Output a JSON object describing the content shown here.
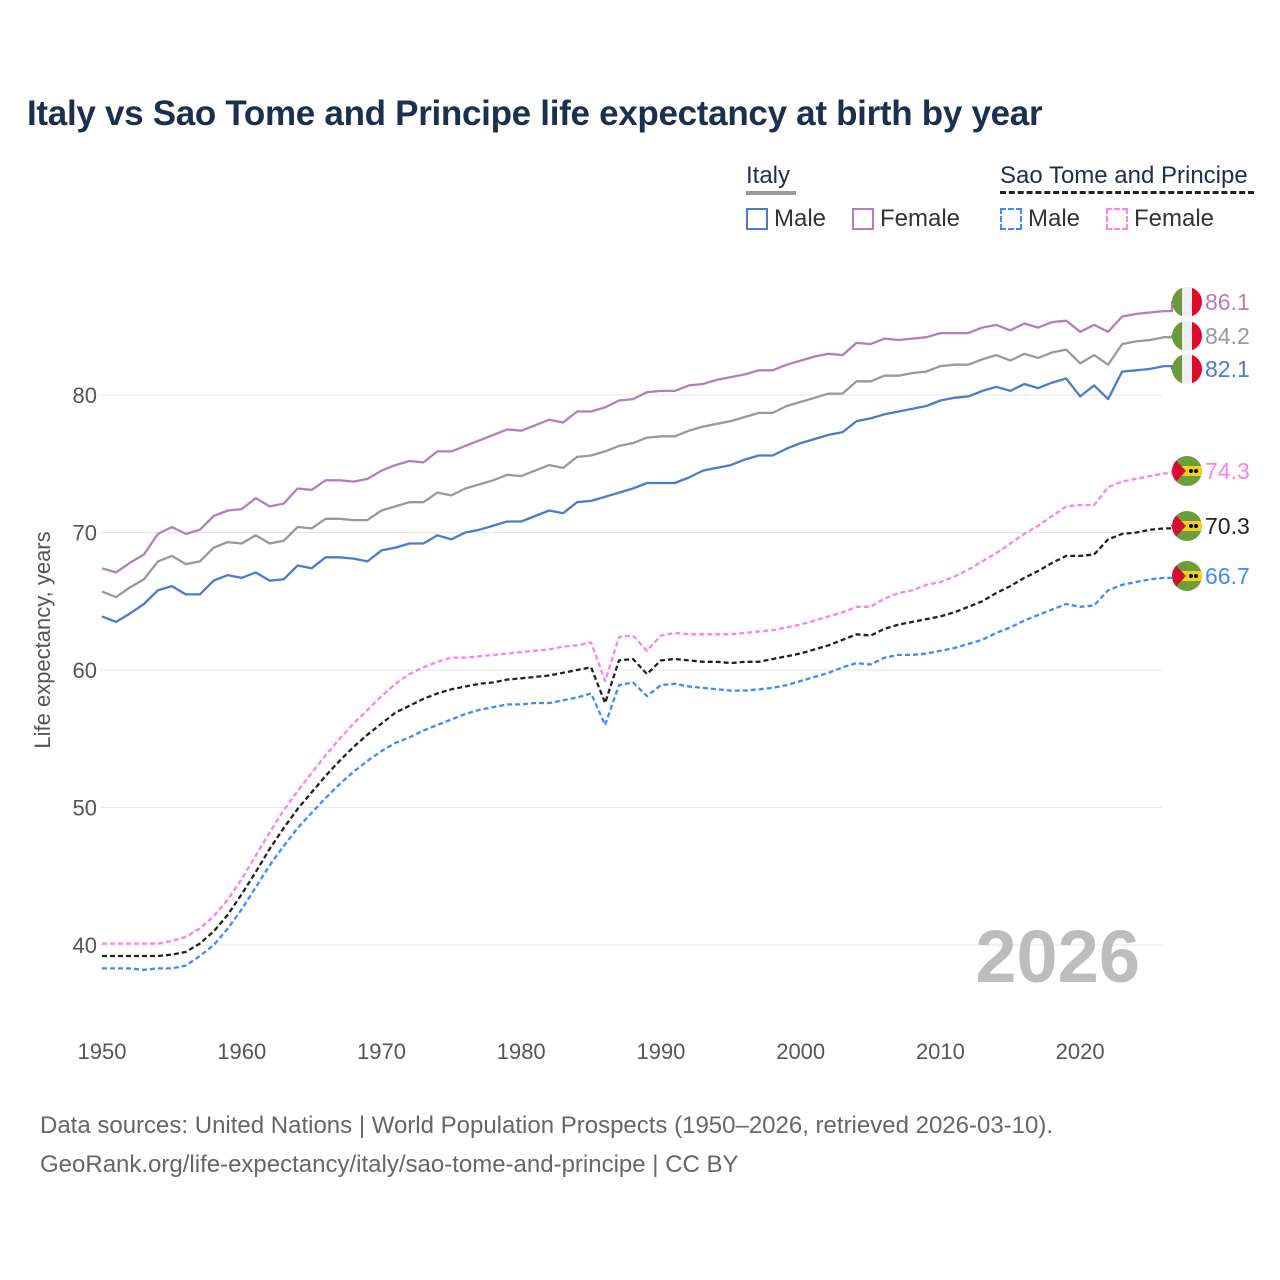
{
  "title": "Italy vs Sao Tome and Principe life expectancy at birth by year",
  "legend": {
    "italy": {
      "label": "Italy",
      "male": "Male",
      "female": "Female"
    },
    "stp": {
      "label": "Sao Tome and Principe",
      "male": "Male",
      "female": "Female"
    }
  },
  "watermark_year": "2026",
  "source": {
    "line1": "Data sources: United Nations | World Population Prospects (1950–2026, retrieved 2026-03-10).",
    "line2": "GeoRank.org/life-expectancy/italy/sao-tome-and-principe | CC BY"
  },
  "chart_data": {
    "type": "line",
    "title": "Italy vs Sao Tome and Principe life expectancy at birth by year",
    "xlabel": "",
    "ylabel": "Life expectancy, years",
    "x_start": 1950,
    "x_end": 2026,
    "xlim": [
      1950,
      2026
    ],
    "ylim": [
      35,
      88
    ],
    "x_ticks": [
      "1950",
      "1960",
      "1970",
      "1980",
      "1990",
      "2000",
      "2010",
      "2020"
    ],
    "y_ticks": [
      "40",
      "50",
      "60",
      "70",
      "80"
    ],
    "grid": true,
    "legend_position": "top-right",
    "series": [
      {
        "name": "Italy Female",
        "color": "#b87cbb",
        "dashed": false,
        "flag": "italy",
        "end_label": "86.1",
        "values": [
          67.4,
          67.1,
          67.8,
          68.4,
          69.9,
          70.4,
          69.9,
          70.2,
          71.2,
          71.6,
          71.7,
          72.5,
          71.9,
          72.1,
          73.2,
          73.1,
          73.8,
          73.8,
          73.7,
          73.9,
          74.5,
          74.9,
          75.2,
          75.1,
          75.9,
          75.9,
          76.3,
          76.7,
          77.1,
          77.5,
          77.4,
          77.8,
          78.2,
          78.0,
          78.8,
          78.8,
          79.1,
          79.6,
          79.7,
          80.2,
          80.3,
          80.3,
          80.7,
          80.8,
          81.1,
          81.3,
          81.5,
          81.8,
          81.8,
          82.2,
          82.5,
          82.8,
          83.0,
          82.9,
          83.8,
          83.7,
          84.1,
          84.0,
          84.1,
          84.2,
          84.5,
          84.5,
          84.5,
          84.9,
          85.1,
          84.7,
          85.2,
          84.9,
          85.3,
          85.4,
          84.6,
          85.1,
          84.6,
          85.7,
          85.9,
          86.0,
          86.1
        ]
      },
      {
        "name": "Italy Total",
        "color": "#999999",
        "dashed": false,
        "flag": "italy",
        "end_label": "84.2",
        "values": [
          65.7,
          65.3,
          66.0,
          66.6,
          67.9,
          68.3,
          67.7,
          67.9,
          68.9,
          69.3,
          69.2,
          69.8,
          69.2,
          69.4,
          70.4,
          70.3,
          71.0,
          71.0,
          70.9,
          70.9,
          71.6,
          71.9,
          72.2,
          72.2,
          72.9,
          72.7,
          73.2,
          73.5,
          73.8,
          74.2,
          74.1,
          74.5,
          74.9,
          74.7,
          75.5,
          75.6,
          75.9,
          76.3,
          76.5,
          76.9,
          77.0,
          77.0,
          77.4,
          77.7,
          77.9,
          78.1,
          78.4,
          78.7,
          78.7,
          79.2,
          79.5,
          79.8,
          80.1,
          80.1,
          81.0,
          81.0,
          81.4,
          81.4,
          81.6,
          81.7,
          82.1,
          82.2,
          82.2,
          82.6,
          82.9,
          82.5,
          83.0,
          82.7,
          83.1,
          83.3,
          82.3,
          82.9,
          82.2,
          83.7,
          83.9,
          84.0,
          84.2
        ]
      },
      {
        "name": "Italy Male",
        "color": "#4a7cc9",
        "dashed": false,
        "flag": "italy",
        "end_label": "82.1",
        "values": [
          63.9,
          63.5,
          64.1,
          64.8,
          65.8,
          66.1,
          65.5,
          65.5,
          66.5,
          66.9,
          66.7,
          67.1,
          66.5,
          66.6,
          67.6,
          67.4,
          68.2,
          68.2,
          68.1,
          67.9,
          68.7,
          68.9,
          69.2,
          69.2,
          69.8,
          69.5,
          70.0,
          70.2,
          70.5,
          70.8,
          70.8,
          71.2,
          71.6,
          71.4,
          72.2,
          72.3,
          72.6,
          72.9,
          73.2,
          73.6,
          73.6,
          73.6,
          74.0,
          74.5,
          74.7,
          74.9,
          75.3,
          75.6,
          75.6,
          76.1,
          76.5,
          76.8,
          77.1,
          77.3,
          78.1,
          78.3,
          78.6,
          78.8,
          79.0,
          79.2,
          79.6,
          79.8,
          79.9,
          80.3,
          80.6,
          80.3,
          80.8,
          80.5,
          80.9,
          81.2,
          79.9,
          80.7,
          79.7,
          81.7,
          81.8,
          81.9,
          82.1
        ]
      },
      {
        "name": "Sao Tome and Principe Female",
        "color": "#ff80f0",
        "dashed": true,
        "flag": "stp",
        "end_label": "74.3",
        "values": [
          40.1,
          40.1,
          40.1,
          40.1,
          40.1,
          40.3,
          40.6,
          41.2,
          42.1,
          43.3,
          44.8,
          46.5,
          48.2,
          49.8,
          51.2,
          52.5,
          53.8,
          55.0,
          56.1,
          57.1,
          58.1,
          59.0,
          59.7,
          60.2,
          60.6,
          60.9,
          60.9,
          61.0,
          61.1,
          61.2,
          61.3,
          61.4,
          61.5,
          61.7,
          61.8,
          62.0,
          59.2,
          62.4,
          62.5,
          61.4,
          62.5,
          62.7,
          62.6,
          62.6,
          62.6,
          62.6,
          62.7,
          62.8,
          62.9,
          63.1,
          63.3,
          63.6,
          63.9,
          64.2,
          64.6,
          64.6,
          65.2,
          65.6,
          65.8,
          66.2,
          66.4,
          66.8,
          67.3,
          67.9,
          68.5,
          69.2,
          69.9,
          70.5,
          71.2,
          71.9,
          72.0,
          72.0,
          73.3,
          73.7,
          73.9,
          74.1,
          74.3
        ]
      },
      {
        "name": "Sao Tome and Principe Total",
        "color": "#222222",
        "dashed": true,
        "flag": "stp",
        "end_label": "70.3",
        "values": [
          39.2,
          39.2,
          39.2,
          39.2,
          39.2,
          39.3,
          39.5,
          40.1,
          41.0,
          42.2,
          43.7,
          45.3,
          47.0,
          48.5,
          49.9,
          51.1,
          52.3,
          53.4,
          54.4,
          55.3,
          56.1,
          56.9,
          57.4,
          57.9,
          58.3,
          58.6,
          58.8,
          59.0,
          59.1,
          59.3,
          59.4,
          59.5,
          59.6,
          59.8,
          60.0,
          60.2,
          57.6,
          60.7,
          60.8,
          59.7,
          60.7,
          60.8,
          60.7,
          60.6,
          60.6,
          60.5,
          60.6,
          60.6,
          60.8,
          61.0,
          61.2,
          61.5,
          61.8,
          62.2,
          62.6,
          62.5,
          63.0,
          63.3,
          63.5,
          63.7,
          63.9,
          64.2,
          64.6,
          65.0,
          65.6,
          66.1,
          66.7,
          67.2,
          67.8,
          68.3,
          68.3,
          68.4,
          69.5,
          69.9,
          70.0,
          70.2,
          70.3
        ]
      },
      {
        "name": "Sao Tome and Principe Male",
        "color": "#3d8bff",
        "dashed": true,
        "flag": "stp",
        "end_label": "66.7",
        "values": [
          38.3,
          38.3,
          38.3,
          38.2,
          38.3,
          38.3,
          38.5,
          39.2,
          40.0,
          41.2,
          42.6,
          44.2,
          45.8,
          47.2,
          48.5,
          49.6,
          50.7,
          51.7,
          52.6,
          53.4,
          54.1,
          54.7,
          55.1,
          55.6,
          56.0,
          56.4,
          56.8,
          57.1,
          57.3,
          57.5,
          57.5,
          57.6,
          57.6,
          57.8,
          58.0,
          58.3,
          56.0,
          58.9,
          59.1,
          58.1,
          58.9,
          59.0,
          58.8,
          58.7,
          58.6,
          58.5,
          58.5,
          58.6,
          58.7,
          58.9,
          59.2,
          59.5,
          59.8,
          60.2,
          60.5,
          60.4,
          60.9,
          61.1,
          61.1,
          61.2,
          61.4,
          61.6,
          61.9,
          62.2,
          62.7,
          63.1,
          63.6,
          64.0,
          64.4,
          64.8,
          64.6,
          64.7,
          65.8,
          66.2,
          66.4,
          66.6,
          66.7
        ]
      }
    ]
  }
}
